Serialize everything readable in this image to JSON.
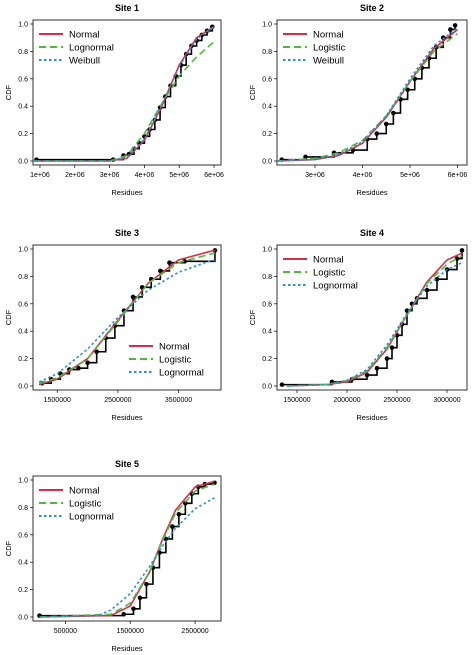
{
  "figure": {
    "background": "#ffffff",
    "colors": {
      "empirical": "#000000",
      "red": "#d62f4b",
      "green": "#4cbb3c",
      "blue": "#2a8fd6"
    }
  },
  "chart_data": [
    {
      "type": "line",
      "title": "Site 1",
      "xlabel": "Residues",
      "ylabel": "CDF",
      "xlim": [
        800000,
        6200000
      ],
      "ylim": [
        0,
        1
      ],
      "xticks": [
        1000000,
        2000000,
        3000000,
        4000000,
        5000000,
        6000000
      ],
      "xtick_labels": [
        "1e+06",
        "2e+06",
        "3e+06",
        "4e+06",
        "5e+06",
        "6e+06"
      ],
      "yticks": [
        0,
        0.2,
        0.4,
        0.6,
        0.8,
        1.0
      ],
      "ytick_labels": [
        "0.0",
        "0.2",
        "0.4",
        "0.6",
        "0.8",
        "1.0"
      ],
      "legend": "top-left",
      "series": [
        {
          "name": "Normal",
          "style": "solid",
          "color": "#d62f4b",
          "x": [
            800000,
            3000000,
            3500000,
            4000000,
            4500000,
            5000000,
            5500000,
            6000000
          ],
          "y": [
            0.0,
            0.0,
            0.02,
            0.15,
            0.4,
            0.7,
            0.9,
            0.98
          ]
        },
        {
          "name": "Lognormal",
          "style": "dashed",
          "color": "#4cbb3c",
          "x": [
            800000,
            3000000,
            3500000,
            4000000,
            4500000,
            5000000,
            5500000,
            6000000
          ],
          "y": [
            0.0,
            0.0,
            0.04,
            0.2,
            0.42,
            0.62,
            0.76,
            0.87
          ]
        },
        {
          "name": "Weibull",
          "style": "dotted",
          "color": "#2a8fd6",
          "x": [
            800000,
            3000000,
            3500000,
            4000000,
            4500000,
            5000000,
            5500000,
            6000000
          ],
          "y": [
            0.0,
            0.0,
            0.03,
            0.16,
            0.41,
            0.69,
            0.89,
            0.98
          ]
        }
      ],
      "empirical": {
        "x": [
          900000,
          3100000,
          3400000,
          3550000,
          3700000,
          3850000,
          4000000,
          4150000,
          4300000,
          4450000,
          4600000,
          4750000,
          4900000,
          5050000,
          5200000,
          5350000,
          5500000,
          5650000,
          5800000,
          5950000
        ],
        "y": [
          0.01,
          0.01,
          0.04,
          0.05,
          0.09,
          0.13,
          0.18,
          0.23,
          0.3,
          0.39,
          0.47,
          0.55,
          0.62,
          0.7,
          0.78,
          0.84,
          0.88,
          0.92,
          0.95,
          0.98
        ]
      }
    },
    {
      "type": "line",
      "title": "Site 2",
      "xlabel": "Residues",
      "ylabel": "CDF",
      "xlim": [
        2200000,
        6200000
      ],
      "ylim": [
        0,
        1
      ],
      "xticks": [
        3000000,
        4000000,
        5000000,
        6000000
      ],
      "xtick_labels": [
        "3e+06",
        "4e+06",
        "5e+06",
        "6e+06"
      ],
      "yticks": [
        0,
        0.2,
        0.4,
        0.6,
        0.8,
        1.0
      ],
      "ytick_labels": [
        "0.0",
        "0.2",
        "0.4",
        "0.6",
        "0.8",
        "1.0"
      ],
      "legend": "top-left",
      "series": [
        {
          "name": "Normal",
          "style": "solid",
          "color": "#d62f4b",
          "x": [
            2200000,
            3000000,
            3500000,
            4000000,
            4500000,
            5000000,
            5500000,
            6000000
          ],
          "y": [
            0.0,
            0.01,
            0.04,
            0.13,
            0.32,
            0.58,
            0.82,
            0.96
          ]
        },
        {
          "name": "Logistic",
          "style": "dashed",
          "color": "#4cbb3c",
          "x": [
            2200000,
            3000000,
            3500000,
            4000000,
            4500000,
            5000000,
            5500000,
            6000000
          ],
          "y": [
            0.0,
            0.02,
            0.06,
            0.15,
            0.33,
            0.58,
            0.8,
            0.93
          ]
        },
        {
          "name": "Weibull",
          "style": "dotted",
          "color": "#2a8fd6",
          "x": [
            2200000,
            3000000,
            3500000,
            4000000,
            4500000,
            5000000,
            5500000,
            6000000
          ],
          "y": [
            0.0,
            0.01,
            0.05,
            0.14,
            0.33,
            0.6,
            0.84,
            0.97
          ]
        }
      ],
      "empirical": {
        "x": [
          2300000,
          2800000,
          3400000,
          3800000,
          4100000,
          4300000,
          4500000,
          4650000,
          4800000,
          4950000,
          5100000,
          5250000,
          5400000,
          5550000,
          5700000,
          5850000,
          5950000
        ],
        "y": [
          0.01,
          0.03,
          0.06,
          0.08,
          0.16,
          0.2,
          0.27,
          0.35,
          0.45,
          0.52,
          0.6,
          0.68,
          0.75,
          0.83,
          0.9,
          0.96,
          0.99
        ]
      }
    },
    {
      "type": "line",
      "title": "Site 3",
      "xlabel": "Residues",
      "ylabel": "CDF",
      "xlim": [
        1100000,
        4200000
      ],
      "ylim": [
        0,
        1
      ],
      "xticks": [
        1500000,
        2500000,
        3500000
      ],
      "xtick_labels": [
        "1500000",
        "2500000",
        "3500000"
      ],
      "yticks": [
        0,
        0.2,
        0.4,
        0.6,
        0.8,
        1.0
      ],
      "ytick_labels": [
        "0.0",
        "0.2",
        "0.4",
        "0.6",
        "0.8",
        "1.0"
      ],
      "legend": "bottom-right",
      "series": [
        {
          "name": "Normal",
          "style": "solid",
          "color": "#d62f4b",
          "x": [
            1200000,
            1500000,
            2000000,
            2500000,
            3000000,
            3500000,
            4000000,
            4100000
          ],
          "y": [
            0.01,
            0.05,
            0.2,
            0.48,
            0.75,
            0.92,
            0.98,
            0.99
          ]
        },
        {
          "name": "Logistic",
          "style": "dashed",
          "color": "#4cbb3c",
          "x": [
            1200000,
            1500000,
            2000000,
            2500000,
            3000000,
            3500000,
            4000000,
            4100000
          ],
          "y": [
            0.02,
            0.06,
            0.2,
            0.47,
            0.75,
            0.9,
            0.96,
            0.97
          ]
        },
        {
          "name": "Lognormal",
          "style": "dotted",
          "color": "#2a8fd6",
          "x": [
            1200000,
            1500000,
            2000000,
            2500000,
            3000000,
            3500000,
            4000000,
            4100000
          ],
          "y": [
            0.03,
            0.09,
            0.27,
            0.5,
            0.7,
            0.83,
            0.91,
            0.92
          ]
        }
      ],
      "empirical": {
        "x": [
          1250000,
          1400000,
          1550000,
          1700000,
          1850000,
          2000000,
          2150000,
          2300000,
          2450000,
          2600000,
          2750000,
          2900000,
          3050000,
          3200000,
          3350000,
          3600000,
          4100000
        ],
        "y": [
          0.02,
          0.05,
          0.09,
          0.12,
          0.13,
          0.17,
          0.25,
          0.35,
          0.44,
          0.55,
          0.65,
          0.72,
          0.78,
          0.84,
          0.9,
          0.91,
          0.99
        ]
      }
    },
    {
      "type": "line",
      "title": "Site 4",
      "xlabel": "Residues",
      "ylabel": "CDF",
      "xlim": [
        1300000,
        3200000
      ],
      "ylim": [
        0,
        1
      ],
      "xticks": [
        1500000,
        2000000,
        2500000,
        3000000
      ],
      "xtick_labels": [
        "1500000",
        "2000000",
        "2500000",
        "3000000"
      ],
      "yticks": [
        0,
        0.2,
        0.4,
        0.6,
        0.8,
        1.0
      ],
      "ytick_labels": [
        "0.0",
        "0.2",
        "0.4",
        "0.6",
        "0.8",
        "1.0"
      ],
      "legend": "top-left",
      "series": [
        {
          "name": "Normal",
          "style": "solid",
          "color": "#d62f4b",
          "x": [
            1400000,
            1800000,
            2000000,
            2200000,
            2400000,
            2600000,
            2800000,
            3000000,
            3150000
          ],
          "y": [
            0.0,
            0.01,
            0.03,
            0.1,
            0.27,
            0.52,
            0.76,
            0.92,
            0.97
          ]
        },
        {
          "name": "Logistic",
          "style": "dashed",
          "color": "#4cbb3c",
          "x": [
            1400000,
            1800000,
            2000000,
            2200000,
            2400000,
            2600000,
            2800000,
            3000000,
            3150000
          ],
          "y": [
            0.0,
            0.01,
            0.04,
            0.11,
            0.28,
            0.52,
            0.75,
            0.89,
            0.95
          ]
        },
        {
          "name": "Lognormal",
          "style": "dotted",
          "color": "#2a8fd6",
          "x": [
            1400000,
            1800000,
            2000000,
            2200000,
            2400000,
            2600000,
            2800000,
            3000000,
            3150000
          ],
          "y": [
            0.0,
            0.01,
            0.04,
            0.12,
            0.3,
            0.53,
            0.73,
            0.85,
            0.9
          ]
        }
      ],
      "empirical": {
        "x": [
          1350000,
          1850000,
          2050000,
          2200000,
          2300000,
          2400000,
          2450000,
          2500000,
          2550000,
          2600000,
          2650000,
          2700000,
          2800000,
          2900000,
          3000000,
          3100000,
          3150000
        ],
        "y": [
          0.01,
          0.03,
          0.05,
          0.08,
          0.13,
          0.2,
          0.28,
          0.37,
          0.45,
          0.55,
          0.6,
          0.64,
          0.7,
          0.78,
          0.85,
          0.93,
          0.99
        ]
      }
    },
    {
      "type": "line",
      "title": "Site 5",
      "xlabel": "Residues",
      "ylabel": "CDF",
      "xlim": [
        0,
        2900000
      ],
      "ylim": [
        0,
        1
      ],
      "xticks": [
        500000,
        1500000,
        2500000
      ],
      "xtick_labels": [
        "500000",
        "1500000",
        "2500000"
      ],
      "yticks": [
        0,
        0.2,
        0.4,
        0.6,
        0.8,
        1.0
      ],
      "ytick_labels": [
        "0.0",
        "0.2",
        "0.4",
        "0.6",
        "0.8",
        "1.0"
      ],
      "legend": "top-left",
      "series": [
        {
          "name": "Normal",
          "style": "solid",
          "color": "#d62f4b",
          "x": [
            100000,
            1200000,
            1500000,
            1800000,
            2000000,
            2200000,
            2500000,
            2800000
          ],
          "y": [
            0.0,
            0.01,
            0.08,
            0.33,
            0.57,
            0.78,
            0.95,
            0.99
          ]
        },
        {
          "name": "Logistic",
          "style": "dashed",
          "color": "#4cbb3c",
          "x": [
            100000,
            1200000,
            1500000,
            1800000,
            2000000,
            2200000,
            2500000,
            2800000
          ],
          "y": [
            0.0,
            0.02,
            0.1,
            0.33,
            0.56,
            0.76,
            0.92,
            0.97
          ]
        },
        {
          "name": "Lognormal",
          "style": "dotted",
          "color": "#2a8fd6",
          "x": [
            100000,
            1000000,
            1200000,
            1500000,
            1800000,
            2000000,
            2200000,
            2500000,
            2800000
          ],
          "y": [
            0.0,
            0.01,
            0.05,
            0.17,
            0.37,
            0.52,
            0.65,
            0.79,
            0.87
          ]
        }
      ],
      "empirical": {
        "x": [
          100000,
          1400000,
          1550000,
          1650000,
          1750000,
          1850000,
          1950000,
          2050000,
          2150000,
          2250000,
          2350000,
          2450000,
          2550000,
          2650000,
          2800000
        ],
        "y": [
          0.01,
          0.02,
          0.06,
          0.14,
          0.24,
          0.36,
          0.47,
          0.57,
          0.66,
          0.75,
          0.83,
          0.9,
          0.95,
          0.97,
          0.98
        ]
      }
    }
  ]
}
